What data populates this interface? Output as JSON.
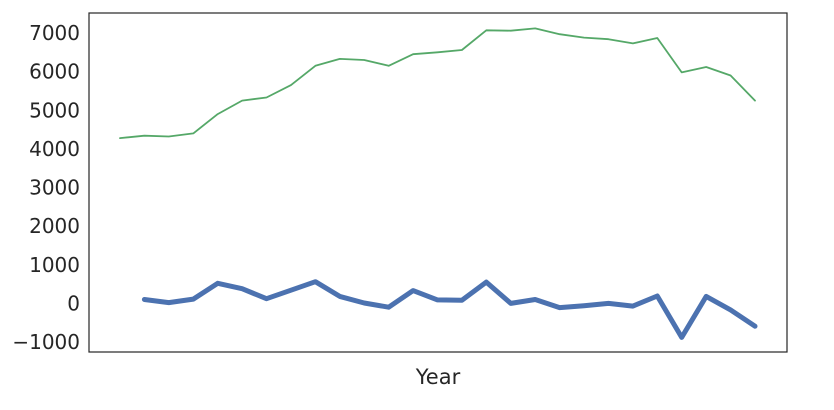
{
  "chart_data": {
    "type": "line",
    "title": "",
    "xlabel": "Year",
    "ylabel": "",
    "ylim": [
      -1250,
      7500
    ],
    "yticks": [
      -1000,
      0,
      1000,
      2000,
      3000,
      4000,
      5000,
      6000,
      7000
    ],
    "ytick_labels": [
      "−1000",
      "0",
      "1000",
      "2000",
      "3000",
      "4000",
      "5000",
      "6000",
      "7000"
    ],
    "grid": false,
    "legend": "none",
    "x": [
      0,
      1,
      2,
      3,
      4,
      5,
      6,
      7,
      8,
      9,
      10,
      11,
      12,
      13,
      14,
      15,
      16,
      17,
      18,
      19,
      20,
      21,
      22,
      23,
      24,
      25,
      26
    ],
    "series": [
      {
        "color": "#55a868",
        "line_width": "thin",
        "values": [
          4280,
          4340,
          4320,
          4400,
          4900,
          5250,
          5330,
          5650,
          6150,
          6330,
          6300,
          6150,
          6450,
          6500,
          6560,
          7070,
          7060,
          7120,
          6970,
          6880,
          6840,
          6730,
          6870,
          5980,
          6120,
          5900,
          5250
        ]
      },
      {
        "color": "#4c72b0",
        "line_width": "thick",
        "values": [
          null,
          100,
          20,
          110,
          520,
          380,
          120,
          340,
          560,
          180,
          10,
          -100,
          330,
          90,
          80,
          550,
          0,
          100,
          -110,
          -60,
          0,
          -70,
          190,
          -880,
          180,
          -170,
          -590
        ]
      }
    ]
  }
}
